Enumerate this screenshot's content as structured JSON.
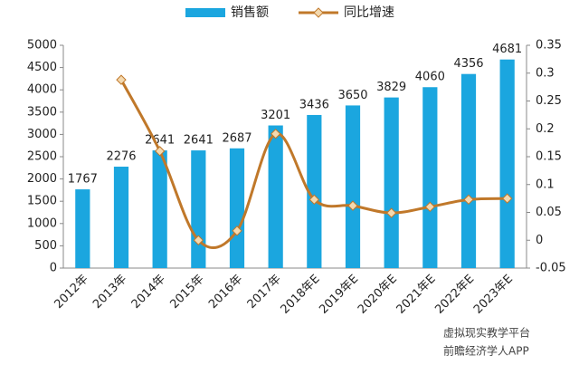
{
  "chart_data": {
    "type": "bar-line",
    "categories": [
      "2012年",
      "2013年",
      "2014年",
      "2015年",
      "2016年",
      "2017年",
      "2018年E",
      "2019年E",
      "2020年E",
      "2021年E",
      "2022年E",
      "2023年E"
    ],
    "series": [
      {
        "name": "销售额",
        "color": "#1ba6df",
        "type": "bar",
        "values": [
          1767,
          2276,
          2641,
          2641,
          2687,
          3201,
          3436,
          3650,
          3829,
          4060,
          4356,
          4681
        ]
      },
      {
        "name": "同比增速",
        "color": "#c0782a",
        "type": "line",
        "axis": "y2",
        "values": [
          null,
          0.288,
          0.16,
          0,
          0.017,
          0.191,
          0.073,
          0.062,
          0.049,
          0.06,
          0.073,
          0.075
        ]
      }
    ],
    "ylim": [
      0,
      5000
    ],
    "yticks": [
      0,
      500,
      1000,
      1500,
      2000,
      2500,
      3000,
      3500,
      4000,
      4500,
      5000
    ],
    "y2lim": [
      -0.05,
      0.35
    ],
    "y2ticks": [
      -0.05,
      0,
      0.05,
      0.1,
      0.15,
      0.2,
      0.25,
      0.3,
      0.35
    ],
    "annotations": [
      "虚拟现实教学平台",
      "前瞻经济学人APP"
    ]
  }
}
